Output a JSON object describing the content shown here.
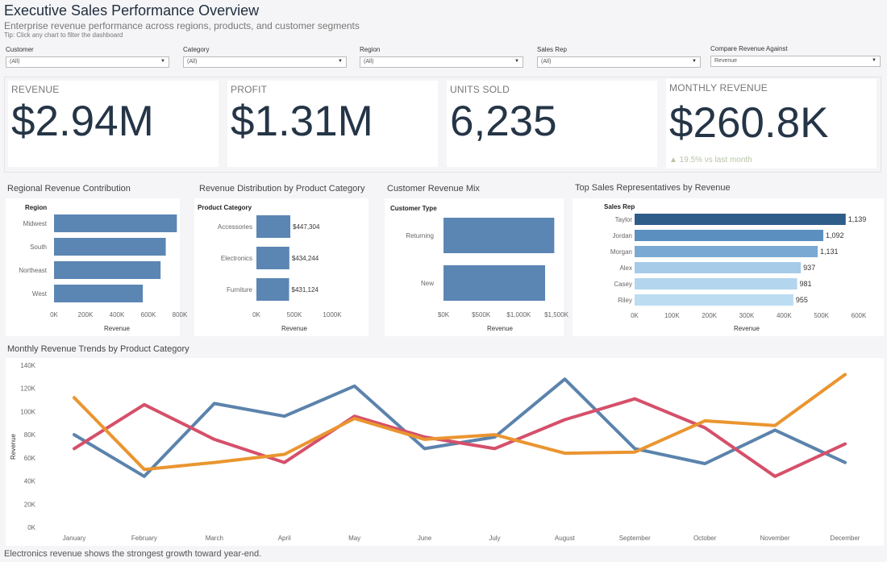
{
  "header": {
    "title": "Executive Sales Performance Overview",
    "subtitle": "Enterprise revenue performance across regions, products, and customer segments",
    "tip": "Tip: Click any chart to filter the dashboard"
  },
  "filters": [
    {
      "label": "Customer",
      "value": "(All)"
    },
    {
      "label": "Category",
      "value": "(All)"
    },
    {
      "label": "Region",
      "value": "(All)"
    },
    {
      "label": "Sales Rep",
      "value": "(All)"
    },
    {
      "label": "Compare Revenue Against",
      "value": "Revenue"
    }
  ],
  "kpis": {
    "revenue": {
      "label": "REVENUE",
      "value": "$2.94M"
    },
    "profit": {
      "label": "PROFIT",
      "value": "$1.31M"
    },
    "units": {
      "label": "UNITS SOLD",
      "value": "6,235"
    },
    "monthly": {
      "label": "MONTHLY REVENUE",
      "value": "$260.8K",
      "delta": "▲ 19.5% vs last month"
    }
  },
  "colors": {
    "bar": "#5b86b3",
    "line_blue": "#5b83ac",
    "line_red": "#d5506a",
    "line_orange": "#ea9530",
    "accent_dark": "#2f5d8a"
  },
  "chart_data": [
    {
      "type": "bar",
      "title": "Regional Revenue Contribution",
      "dim_label": "Region",
      "categories": [
        "Midwest",
        "South",
        "Northeast",
        "West"
      ],
      "values": [
        830000,
        755000,
        720000,
        600000
      ],
      "xlabel": "Revenue",
      "xlim": [
        0,
        850000
      ],
      "ticks": [
        "0K",
        "200K",
        "400K",
        "600K",
        "800K"
      ]
    },
    {
      "type": "bar",
      "title": "Revenue Distribution by Product Category",
      "dim_label": "Product Category",
      "categories": [
        "Accessories",
        "Electronics",
        "Furniture"
      ],
      "values": [
        447304,
        434244,
        431124
      ],
      "labels": [
        "$447,304",
        "$434,244",
        "$431,124"
      ],
      "xlabel": "Revenue",
      "xlim": [
        0,
        1000000
      ],
      "ticks": [
        "0K",
        "500K",
        "1000K"
      ]
    },
    {
      "type": "bar",
      "title": "Customer Revenue Mix",
      "dim_label": "Customer Type",
      "categories": [
        "Returning",
        "New"
      ],
      "values": [
        1570000,
        1440000
      ],
      "xlabel": "Revenue",
      "xlim": [
        0,
        1600000
      ],
      "ticks": [
        "$0K",
        "$500K",
        "$1,000K",
        "$1,500K"
      ]
    },
    {
      "type": "bar",
      "title": "Top Sales Representatives by Revenue",
      "dim_label": "Sales Rep",
      "categories": [
        "Taylor",
        "Jordan",
        "Morgan",
        "Alex",
        "Casey",
        "Riley"
      ],
      "values": [
        565000,
        505000,
        490000,
        445000,
        435000,
        425000
      ],
      "labels": [
        "1,139",
        "1,092",
        "1,131",
        "937",
        "981",
        "955"
      ],
      "xlabel": "Revenue",
      "xlim": [
        0,
        600000
      ],
      "ticks": [
        "0K",
        "100K",
        "200K",
        "300K",
        "400K",
        "500K",
        "600K"
      ]
    },
    {
      "type": "line",
      "title": "Monthly Revenue Trends by Product Category",
      "ylabel": "Revenue",
      "x": [
        "January",
        "February",
        "March",
        "April",
        "May",
        "June",
        "July",
        "August",
        "September",
        "October",
        "November",
        "December"
      ],
      "ylim": [
        0,
        140000
      ],
      "yticks": [
        "0K",
        "20K",
        "40K",
        "60K",
        "80K",
        "100K",
        "120K",
        "140K"
      ],
      "series": [
        {
          "color": "#5b83ac",
          "values": [
            80000,
            44000,
            107000,
            96000,
            122000,
            68000,
            78000,
            128000,
            68000,
            55000,
            84000,
            56000
          ]
        },
        {
          "color": "#d5506a",
          "values": [
            68000,
            106000,
            76000,
            56000,
            96000,
            78000,
            68000,
            93000,
            111000,
            86000,
            44000,
            72000
          ]
        },
        {
          "color": "#ea9530",
          "values": [
            112000,
            50000,
            56000,
            63000,
            94000,
            76000,
            80000,
            64000,
            65000,
            92000,
            88000,
            132000
          ]
        }
      ]
    }
  ],
  "footer": {
    "note": "Electronics revenue shows the strongest growth toward year-end."
  }
}
